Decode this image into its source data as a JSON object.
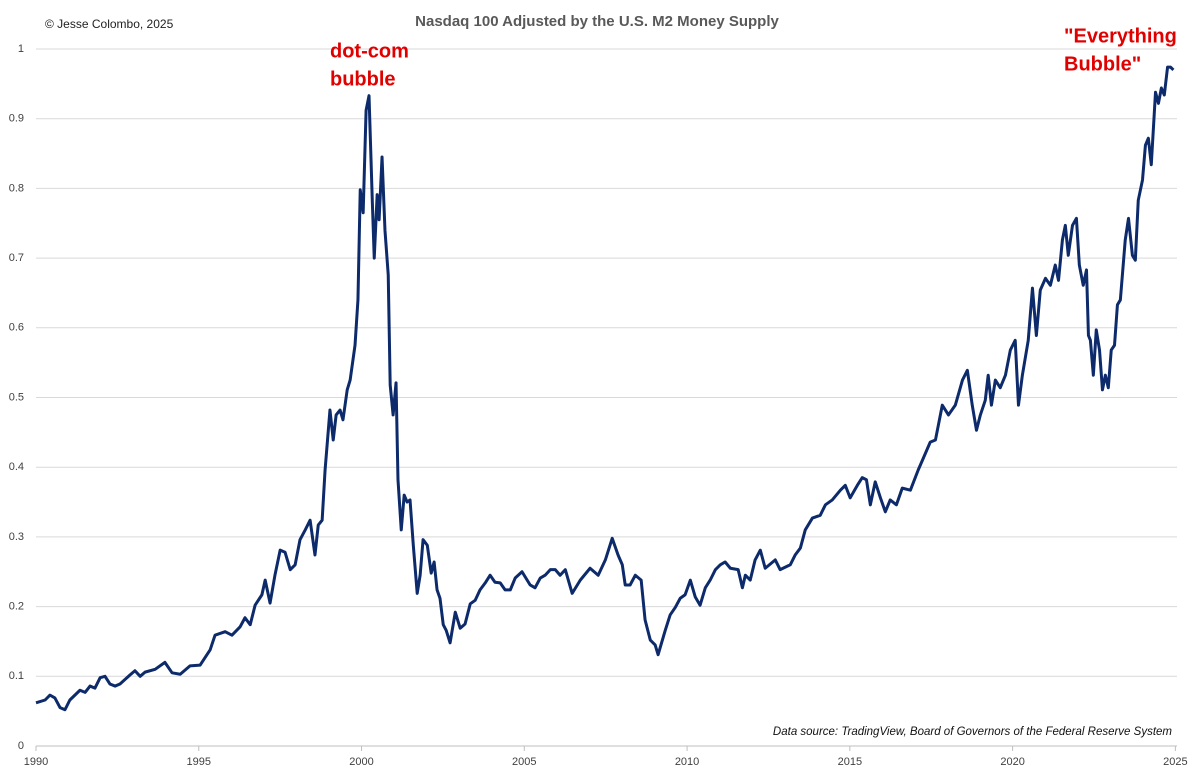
{
  "chart_data": {
    "type": "line",
    "title": "Nasdaq 100 Adjusted by the U.S. M2 Money Supply",
    "copyright": "© Jesse Colombo, 2025",
    "source": "Data source: TradingView, Board of Governors of the Federal Reserve System",
    "annotations": [
      [
        "dot-com",
        "bubble"
      ],
      [
        "\"Everything",
        "Bubble\""
      ]
    ],
    "color": "#0d2a6b",
    "annotation_color": "#e00000",
    "grid": true,
    "xlim": [
      1990,
      2025.05
    ],
    "xticks": [
      1990,
      1995,
      2000,
      2005,
      2010,
      2015,
      2020,
      2025
    ],
    "ylim": [
      0,
      1
    ],
    "yticks": [
      0,
      0.1,
      0.2,
      0.3,
      0.4,
      0.5,
      0.6,
      0.7,
      0.8,
      0.9,
      1
    ],
    "x": [
      1990.0,
      1990.28,
      1990.43,
      1990.58,
      1990.74,
      1990.89,
      1991.04,
      1991.35,
      1991.51,
      1991.66,
      1991.81,
      1991.97,
      1992.12,
      1992.27,
      1992.43,
      1992.58,
      1992.89,
      1993.04,
      1993.2,
      1993.35,
      1993.66,
      1993.96,
      1994.18,
      1994.43,
      1994.73,
      1995.04,
      1995.35,
      1995.5,
      1995.81,
      1996.02,
      1996.27,
      1996.42,
      1996.58,
      1996.73,
      1996.94,
      1997.04,
      1997.19,
      1997.34,
      1997.5,
      1997.65,
      1997.81,
      1997.96,
      1998.11,
      1998.27,
      1998.42,
      1998.57,
      1998.67,
      1998.79,
      1998.88,
      1999.03,
      1999.13,
      1999.22,
      1999.34,
      1999.43,
      1999.56,
      1999.65,
      1999.8,
      1999.89,
      1999.96,
      2000.05,
      2000.14,
      2000.23,
      2000.33,
      2000.39,
      2000.48,
      2000.54,
      2000.63,
      2000.72,
      2000.82,
      2000.88,
      2000.97,
      2001.06,
      2001.12,
      2001.22,
      2001.31,
      2001.4,
      2001.49,
      2001.59,
      2001.71,
      2001.8,
      2001.89,
      2002.02,
      2002.14,
      2002.23,
      2002.32,
      2002.41,
      2002.51,
      2002.6,
      2002.72,
      2002.88,
      2003.03,
      2003.18,
      2003.34,
      2003.49,
      2003.64,
      2003.8,
      2003.95,
      2004.1,
      2004.26,
      2004.41,
      2004.57,
      2004.72,
      2004.93,
      2005.18,
      2005.33,
      2005.49,
      2005.64,
      2005.8,
      2005.95,
      2006.1,
      2006.26,
      2006.47,
      2006.72,
      2007.02,
      2007.27,
      2007.49,
      2007.7,
      2007.88,
      2008.01,
      2008.1,
      2008.25,
      2008.41,
      2008.59,
      2008.71,
      2008.87,
      2009.02,
      2009.11,
      2009.33,
      2009.48,
      2009.64,
      2009.79,
      2009.94,
      2010.1,
      2010.25,
      2010.4,
      2010.56,
      2010.71,
      2010.87,
      2011.02,
      2011.17,
      2011.33,
      2011.57,
      2011.7,
      2011.79,
      2011.94,
      2012.09,
      2012.25,
      2012.4,
      2012.71,
      2012.86,
      2013.17,
      2013.32,
      2013.48,
      2013.63,
      2013.85,
      2014.09,
      2014.25,
      2014.46,
      2014.71,
      2014.86,
      2015.01,
      2015.23,
      2015.38,
      2015.51,
      2015.63,
      2015.78,
      2015.94,
      2016.09,
      2016.24,
      2016.43,
      2016.61,
      2016.86,
      2017.1,
      2017.23,
      2017.47,
      2017.63,
      2017.84,
      2018.03,
      2018.24,
      2018.46,
      2018.61,
      2018.76,
      2018.89,
      2019.01,
      2019.16,
      2019.25,
      2019.35,
      2019.47,
      2019.62,
      2019.78,
      2019.93,
      2020.08,
      2020.18,
      2020.3,
      2020.48,
      2020.61,
      2020.73,
      2020.85,
      2021.01,
      2021.16,
      2021.31,
      2021.41,
      2021.53,
      2021.62,
      2021.71,
      2021.84,
      2021.96,
      2022.05,
      2022.17,
      2022.27,
      2022.33,
      2022.39,
      2022.48,
      2022.57,
      2022.67,
      2022.76,
      2022.85,
      2022.94,
      2023.03,
      2023.13,
      2023.22,
      2023.31,
      2023.46,
      2023.56,
      2023.68,
      2023.77,
      2023.86,
      2023.99,
      2024.08,
      2024.17,
      2024.26,
      2024.39,
      2024.48,
      2024.57,
      2024.66,
      2024.76,
      2024.85,
      2024.94
    ],
    "values": [
      0.062,
      0.066,
      0.073,
      0.069,
      0.055,
      0.052,
      0.066,
      0.08,
      0.077,
      0.086,
      0.083,
      0.098,
      0.1,
      0.089,
      0.086,
      0.089,
      0.102,
      0.108,
      0.1,
      0.106,
      0.11,
      0.12,
      0.105,
      0.103,
      0.115,
      0.116,
      0.138,
      0.159,
      0.164,
      0.159,
      0.171,
      0.184,
      0.174,
      0.202,
      0.217,
      0.238,
      0.205,
      0.245,
      0.281,
      0.278,
      0.253,
      0.26,
      0.296,
      0.31,
      0.324,
      0.274,
      0.317,
      0.324,
      0.396,
      0.482,
      0.439,
      0.475,
      0.482,
      0.468,
      0.511,
      0.525,
      0.575,
      0.64,
      0.798,
      0.765,
      0.912,
      0.933,
      0.783,
      0.7,
      0.791,
      0.755,
      0.845,
      0.74,
      0.676,
      0.518,
      0.475,
      0.521,
      0.382,
      0.31,
      0.36,
      0.35,
      0.353,
      0.288,
      0.219,
      0.245,
      0.296,
      0.288,
      0.248,
      0.264,
      0.224,
      0.212,
      0.174,
      0.166,
      0.148,
      0.192,
      0.169,
      0.175,
      0.204,
      0.209,
      0.224,
      0.234,
      0.245,
      0.235,
      0.234,
      0.224,
      0.224,
      0.241,
      0.25,
      0.231,
      0.227,
      0.241,
      0.245,
      0.253,
      0.253,
      0.245,
      0.253,
      0.219,
      0.238,
      0.255,
      0.245,
      0.267,
      0.298,
      0.274,
      0.26,
      0.231,
      0.231,
      0.245,
      0.238,
      0.181,
      0.152,
      0.145,
      0.131,
      0.166,
      0.188,
      0.199,
      0.212,
      0.217,
      0.238,
      0.214,
      0.202,
      0.227,
      0.238,
      0.253,
      0.26,
      0.264,
      0.255,
      0.253,
      0.227,
      0.245,
      0.238,
      0.267,
      0.281,
      0.255,
      0.267,
      0.253,
      0.26,
      0.274,
      0.284,
      0.31,
      0.327,
      0.331,
      0.346,
      0.353,
      0.367,
      0.374,
      0.356,
      0.374,
      0.385,
      0.382,
      0.346,
      0.379,
      0.356,
      0.336,
      0.353,
      0.346,
      0.37,
      0.367,
      0.396,
      0.41,
      0.436,
      0.439,
      0.489,
      0.475,
      0.489,
      0.525,
      0.539,
      0.489,
      0.453,
      0.475,
      0.496,
      0.532,
      0.489,
      0.525,
      0.514,
      0.532,
      0.568,
      0.582,
      0.489,
      0.532,
      0.582,
      0.657,
      0.589,
      0.654,
      0.671,
      0.661,
      0.69,
      0.668,
      0.726,
      0.747,
      0.704,
      0.747,
      0.757,
      0.69,
      0.661,
      0.683,
      0.589,
      0.582,
      0.532,
      0.597,
      0.568,
      0.511,
      0.532,
      0.514,
      0.568,
      0.575,
      0.633,
      0.64,
      0.726,
      0.757,
      0.704,
      0.697,
      0.783,
      0.812,
      0.862,
      0.872,
      0.834,
      0.938,
      0.922,
      0.944,
      0.934,
      0.974,
      0.974,
      0.97
    ]
  }
}
